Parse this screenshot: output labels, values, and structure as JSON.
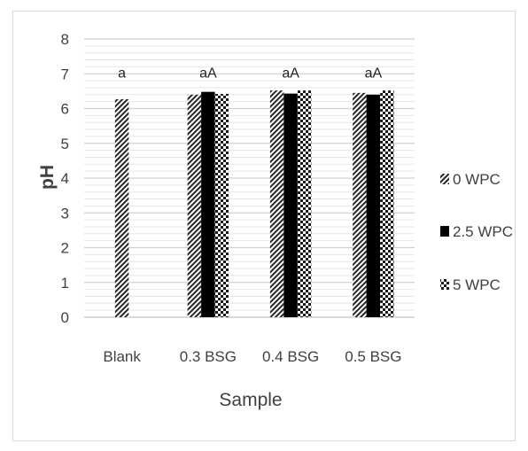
{
  "chart_data": {
    "type": "bar",
    "xlabel": "Sample",
    "ylabel": "pH",
    "ylim": [
      0,
      8
    ],
    "y_ticks": [
      0,
      1,
      2,
      3,
      4,
      5,
      6,
      7,
      8
    ],
    "grid": true,
    "legend_position": "right",
    "categories": [
      "Blank",
      "0.3 BSG",
      "0.4 BSG",
      "0.5 BSG"
    ],
    "series": [
      {
        "name": "0 WPC",
        "pattern": "diagonal-hatch",
        "values": [
          6.27,
          6.4,
          6.52,
          6.45
        ]
      },
      {
        "name": "2.5 WPC",
        "pattern": "solid-black",
        "values": [
          null,
          6.48,
          6.43,
          6.4
        ]
      },
      {
        "name": "5 WPC",
        "pattern": "checkerboard",
        "values": [
          null,
          6.42,
          6.52,
          6.52
        ]
      }
    ],
    "annotations": [
      "a",
      "aA",
      "aA",
      "aA"
    ]
  }
}
